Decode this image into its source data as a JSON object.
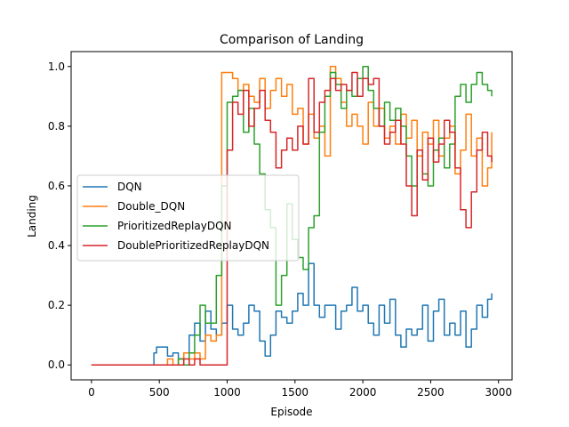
{
  "chart_data": {
    "type": "line",
    "title": "Comparison of Landing",
    "xlabel": "Episode",
    "ylabel": "Landing",
    "xlim": [
      -150,
      3100
    ],
    "ylim": [
      -0.05,
      1.05
    ],
    "xticks": [
      0,
      500,
      1000,
      1500,
      2000,
      2500,
      3000
    ],
    "yticks": [
      0.0,
      0.2,
      0.4,
      0.6,
      0.8,
      1.0
    ],
    "xtick_labels": [
      "0",
      "500",
      "1000",
      "1500",
      "2000",
      "2500",
      "3000"
    ],
    "ytick_labels": [
      "0.0",
      "0.2",
      "0.4",
      "0.6",
      "0.8",
      "1.0"
    ],
    "grid": false,
    "legend_position": "center-left",
    "series": [
      {
        "name": "DQN",
        "color": "#1f77b4",
        "x": [
          0,
          100,
          200,
          300,
          400,
          460,
          480,
          520,
          560,
          600,
          640,
          680,
          720,
          760,
          800,
          840,
          880,
          920,
          960,
          1000,
          1040,
          1080,
          1120,
          1160,
          1200,
          1240,
          1280,
          1320,
          1360,
          1400,
          1440,
          1480,
          1520,
          1560,
          1600,
          1640,
          1680,
          1720,
          1760,
          1800,
          1840,
          1880,
          1920,
          1960,
          2000,
          2040,
          2080,
          2120,
          2160,
          2200,
          2240,
          2280,
          2320,
          2360,
          2400,
          2440,
          2480,
          2520,
          2560,
          2600,
          2640,
          2680,
          2720,
          2760,
          2800,
          2840,
          2880,
          2920,
          2950
        ],
        "y": [
          0.0,
          0.0,
          0.0,
          0.0,
          0.0,
          0.04,
          0.06,
          0.06,
          0.03,
          0.04,
          0.02,
          0.04,
          0.1,
          0.14,
          0.08,
          0.18,
          0.12,
          0.1,
          0.14,
          0.2,
          0.12,
          0.1,
          0.14,
          0.2,
          0.18,
          0.08,
          0.03,
          0.1,
          0.18,
          0.16,
          0.14,
          0.18,
          0.24,
          0.2,
          0.34,
          0.2,
          0.16,
          0.2,
          0.2,
          0.12,
          0.18,
          0.2,
          0.26,
          0.18,
          0.2,
          0.14,
          0.1,
          0.2,
          0.14,
          0.22,
          0.1,
          0.06,
          0.12,
          0.1,
          0.12,
          0.2,
          0.08,
          0.18,
          0.22,
          0.1,
          0.14,
          0.1,
          0.18,
          0.06,
          0.12,
          0.2,
          0.16,
          0.22,
          0.24
        ]
      },
      {
        "name": "Double_DQN",
        "color": "#ff7f0e",
        "x": [
          0,
          100,
          200,
          300,
          400,
          500,
          560,
          600,
          640,
          680,
          720,
          760,
          800,
          840,
          880,
          920,
          960,
          1000,
          1040,
          1080,
          1120,
          1160,
          1200,
          1240,
          1280,
          1320,
          1360,
          1400,
          1440,
          1480,
          1520,
          1560,
          1600,
          1640,
          1680,
          1720,
          1760,
          1800,
          1840,
          1880,
          1920,
          1960,
          2000,
          2040,
          2080,
          2120,
          2160,
          2200,
          2240,
          2280,
          2320,
          2360,
          2400,
          2440,
          2480,
          2520,
          2560,
          2600,
          2640,
          2680,
          2720,
          2760,
          2800,
          2840,
          2880,
          2920,
          2950
        ],
        "y": [
          0.0,
          0.0,
          0.0,
          0.0,
          0.0,
          0.0,
          0.02,
          0.0,
          0.02,
          0.04,
          0.02,
          0.04,
          0.02,
          0.1,
          0.08,
          0.1,
          0.98,
          0.98,
          0.96,
          0.92,
          0.94,
          0.9,
          0.88,
          0.96,
          0.86,
          0.92,
          0.96,
          0.9,
          0.94,
          0.84,
          0.86,
          0.74,
          0.84,
          0.76,
          0.8,
          0.7,
          1.0,
          0.96,
          0.88,
          0.8,
          0.84,
          0.8,
          0.74,
          0.88,
          0.8,
          0.86,
          0.76,
          0.8,
          0.74,
          0.84,
          0.76,
          0.82,
          0.7,
          0.78,
          0.74,
          0.82,
          0.7,
          0.76,
          0.8,
          0.64,
          0.72,
          0.84,
          0.7,
          0.76,
          0.6,
          0.66,
          0.78
        ]
      },
      {
        "name": "PrioritizedReplayDQN",
        "color": "#2ca02c",
        "x": [
          0,
          100,
          200,
          300,
          400,
          500,
          560,
          600,
          640,
          680,
          720,
          760,
          800,
          840,
          880,
          920,
          960,
          1000,
          1040,
          1080,
          1120,
          1160,
          1200,
          1240,
          1280,
          1320,
          1360,
          1400,
          1440,
          1480,
          1520,
          1560,
          1600,
          1640,
          1680,
          1720,
          1760,
          1800,
          1840,
          1880,
          1920,
          1960,
          2000,
          2040,
          2080,
          2120,
          2160,
          2200,
          2240,
          2280,
          2320,
          2360,
          2400,
          2440,
          2480,
          2520,
          2560,
          2600,
          2640,
          2680,
          2720,
          2760,
          2800,
          2840,
          2880,
          2920,
          2950
        ],
        "y": [
          0.0,
          0.0,
          0.0,
          0.0,
          0.0,
          0.0,
          0.0,
          0.0,
          0.02,
          0.0,
          0.04,
          0.1,
          0.2,
          0.14,
          0.14,
          0.3,
          0.6,
          0.88,
          0.9,
          0.92,
          0.78,
          0.86,
          0.74,
          0.64,
          0.52,
          0.46,
          0.2,
          0.3,
          0.54,
          0.42,
          0.36,
          0.32,
          0.46,
          0.5,
          0.78,
          0.9,
          0.98,
          0.94,
          0.86,
          0.92,
          0.9,
          0.96,
          1.0,
          0.92,
          0.86,
          0.8,
          0.88,
          0.82,
          0.86,
          0.8,
          0.7,
          0.6,
          0.72,
          0.64,
          0.6,
          0.72,
          0.76,
          0.66,
          0.74,
          0.9,
          0.94,
          0.88,
          0.94,
          0.98,
          0.94,
          0.92,
          0.9
        ]
      },
      {
        "name": "DoublePrioritizedReplayDQN",
        "color": "#d62728",
        "x": [
          0,
          100,
          200,
          300,
          400,
          500,
          560,
          600,
          640,
          680,
          720,
          760,
          800,
          840,
          880,
          920,
          960,
          1000,
          1040,
          1080,
          1120,
          1160,
          1200,
          1240,
          1280,
          1320,
          1360,
          1400,
          1440,
          1480,
          1520,
          1560,
          1600,
          1640,
          1680,
          1720,
          1760,
          1800,
          1840,
          1880,
          1920,
          1960,
          2000,
          2040,
          2080,
          2120,
          2160,
          2200,
          2240,
          2280,
          2320,
          2360,
          2400,
          2440,
          2480,
          2520,
          2560,
          2600,
          2640,
          2680,
          2720,
          2760,
          2800,
          2840,
          2880,
          2920,
          2950
        ],
        "y": [
          0.0,
          0.0,
          0.0,
          0.0,
          0.0,
          0.0,
          0.0,
          0.0,
          0.0,
          0.02,
          0.0,
          0.02,
          0.0,
          0.0,
          0.0,
          0.0,
          0.0,
          0.72,
          0.88,
          0.84,
          0.92,
          0.8,
          0.86,
          0.92,
          0.82,
          0.78,
          0.66,
          0.72,
          0.76,
          0.72,
          0.8,
          0.74,
          0.96,
          0.78,
          0.88,
          0.92,
          0.96,
          0.92,
          0.94,
          0.92,
          0.98,
          0.9,
          0.96,
          0.94,
          0.96,
          0.8,
          0.74,
          0.78,
          0.82,
          0.74,
          0.6,
          0.5,
          0.72,
          0.62,
          0.76,
          0.68,
          0.74,
          0.82,
          0.78,
          0.66,
          0.52,
          0.46,
          0.58,
          0.72,
          0.78,
          0.7,
          0.68
        ]
      }
    ]
  }
}
